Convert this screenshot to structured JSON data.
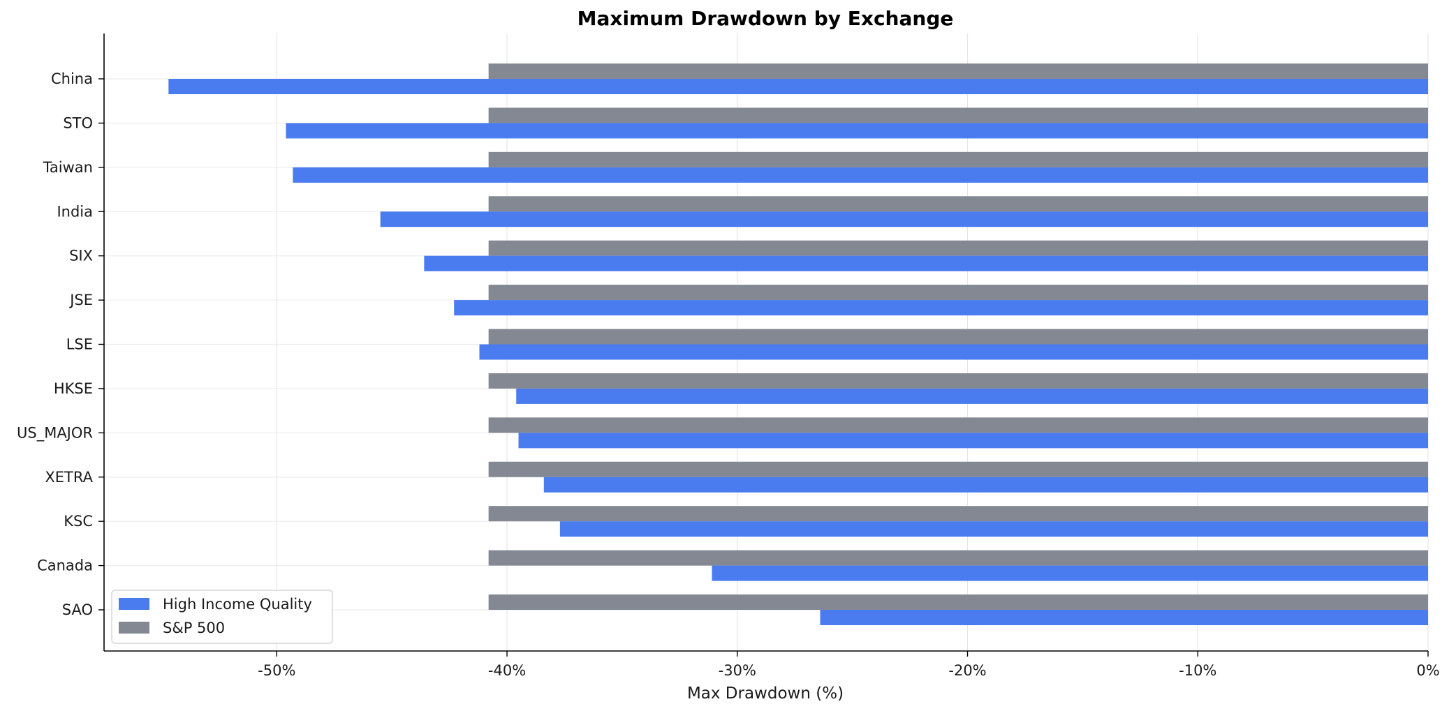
{
  "chart_data": {
    "type": "bar",
    "orientation": "horizontal",
    "title": "Maximum Drawdown by Exchange",
    "xlabel": "Max Drawdown (%)",
    "ylabel": "",
    "categories": [
      "China",
      "STO",
      "Taiwan",
      "India",
      "SIX",
      "JSE",
      "LSE",
      "HKSE",
      "US_MAJOR",
      "XETRA",
      "KSC",
      "Canada",
      "SAO"
    ],
    "series": [
      {
        "name": "High Income Quality",
        "color": "#4a7cf0",
        "values": [
          -54.7,
          -49.6,
          -49.3,
          -45.5,
          -43.6,
          -42.3,
          -41.2,
          -39.6,
          -39.5,
          -38.4,
          -37.7,
          -31.1,
          -26.4
        ]
      },
      {
        "name": "S&P 500",
        "color": "#838893",
        "values": [
          -40.8,
          -40.8,
          -40.8,
          -40.8,
          -40.8,
          -40.8,
          -40.8,
          -40.8,
          -40.8,
          -40.8,
          -40.8,
          -40.8,
          -40.8
        ]
      }
    ],
    "xlim": [
      -57.5,
      0
    ],
    "xticks": [
      -50,
      -40,
      -30,
      -20,
      -10,
      0
    ],
    "xtick_labels": [
      "-50%",
      "-40%",
      "-30%",
      "-20%",
      "-10%",
      "0%"
    ],
    "grid": true,
    "legend_position": "lower-left"
  }
}
